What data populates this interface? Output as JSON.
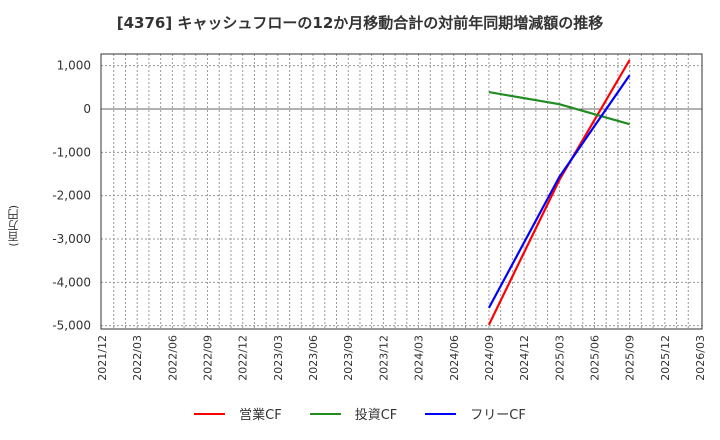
{
  "title": "[4376]  キャッシュフローの12か月移動合計の対前年同期増減額の推移",
  "y_axis_label": "(百万円)",
  "legend": [
    {
      "label": "営業CF",
      "color": "#ff0000"
    },
    {
      "label": "投資CF",
      "color": "#228b22"
    },
    {
      "label": "フリーCF",
      "color": "#0000ff"
    }
  ],
  "chart_data": {
    "type": "line",
    "title": "[4376]  キャッシュフローの12か月移動合計の対前年同期増減額の推移",
    "xlabel": "",
    "ylabel": "(百万円)",
    "ylim": [
      -5000,
      1000
    ],
    "yticks": [
      1000,
      0,
      -1000,
      -2000,
      -3000,
      -4000,
      -5000
    ],
    "ytick_labels": [
      "1,000",
      "0",
      "-1,000",
      "-2,000",
      "-3,000",
      "-4,000",
      "-5,000"
    ],
    "xtick_labels": [
      "2021/12",
      "2022/03",
      "2022/06",
      "2022/09",
      "2022/12",
      "2023/03",
      "2023/06",
      "2023/09",
      "2023/12",
      "2024/03",
      "2024/06",
      "2024/09",
      "2024/12",
      "2025/03",
      "2025/06",
      "2025/09",
      "2025/12",
      "2026/03"
    ],
    "grid": true,
    "legend_position": "bottom",
    "x": [
      "2024/09",
      "2025/03",
      "2025/09"
    ],
    "series": [
      {
        "name": "営業CF",
        "color": "#ff0000",
        "values": [
          -4980,
          -1640,
          1130
        ]
      },
      {
        "name": "投資CF",
        "color": "#228b22",
        "values": [
          390,
          110,
          -350
        ]
      },
      {
        "name": "フリーCF",
        "color": "#0000ff",
        "values": [
          -4590,
          -1570,
          780
        ]
      }
    ]
  }
}
